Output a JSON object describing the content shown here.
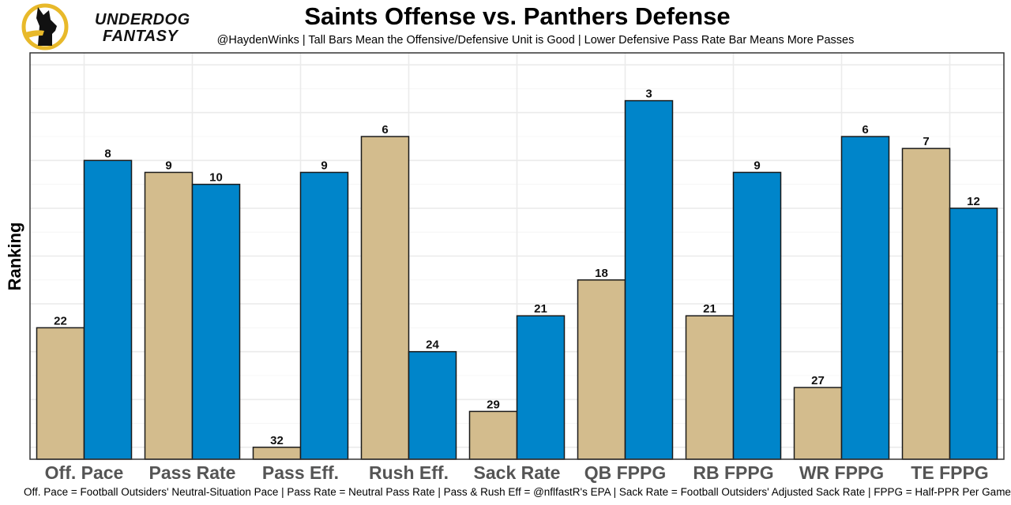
{
  "brand": {
    "line1": "UNDERDOG",
    "line2": "FANTASY",
    "ring_color": "#E8B92A"
  },
  "chart_data": {
    "type": "bar",
    "title": "Saints Offense vs. Panthers Defense",
    "subtitle": "@HaydenWinks | Tall Bars Mean the Offensive/Defensive Unit is Good | Lower Defensive Pass Rate Bar Means More Passes",
    "xlabel": "",
    "ylabel": "Ranking",
    "caption": "Off. Pace = Football Outsiders' Neutral-Situation Pace | Pass Rate = Neutral Pass Rate | Pass & Rush Eff = @nflfastR's EPA | Sack Rate = Football Outsiders' Adjusted Sack Rate | FPPG = Half-PPR Per Game",
    "categories": [
      "Off. Pace",
      "Pass Rate",
      "Pass Eff.",
      "Rush Eff.",
      "Sack Rate",
      "QB FPPG",
      "RB FPPG",
      "WR FPPG",
      "TE FPPG"
    ],
    "series": [
      {
        "name": "Saints Offense",
        "color": "#D3BC8D",
        "values": [
          22,
          9,
          32,
          6,
          29,
          18,
          21,
          27,
          7
        ]
      },
      {
        "name": "Panthers Defense",
        "color": "#0085CA",
        "values": [
          8,
          10,
          9,
          24,
          21,
          3,
          9,
          6,
          12
        ]
      }
    ],
    "y_transform": "bar height = 33 - rank (rank 1 tallest)",
    "ylim": [
      0,
      34
    ],
    "y_ticks_visible": false,
    "grid": true,
    "legend": "none"
  }
}
